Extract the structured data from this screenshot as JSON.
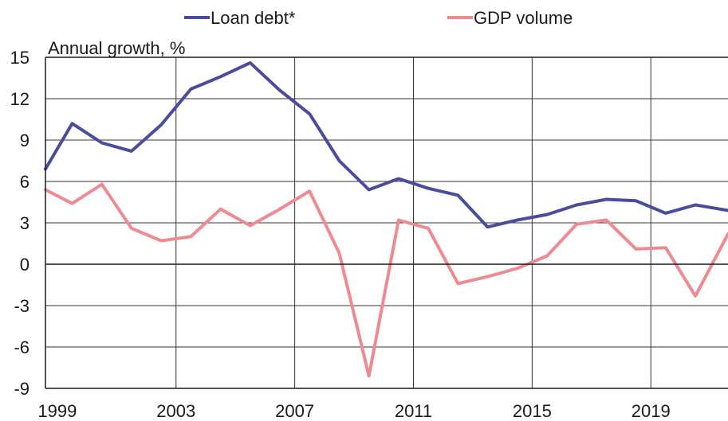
{
  "chart_data": {
    "type": "line",
    "ylabel": "Annual growth, %",
    "ylim": [
      -9,
      15
    ],
    "yticks": [
      15,
      12,
      9,
      6,
      3,
      0,
      -3,
      -6,
      -9
    ],
    "xlim": [
      1998.6,
      2021.6
    ],
    "xticks": [
      1999,
      2003,
      2007,
      2011,
      2015,
      2019
    ],
    "x_gridlines": [
      2003,
      2007,
      2011,
      2015,
      2019
    ],
    "y_gridlines": [
      12,
      9,
      6,
      3,
      -3,
      -6
    ],
    "zero_line": 0,
    "grid": true,
    "legend": {
      "position": "top"
    },
    "series": [
      {
        "name": "Loan debt*",
        "color": "#4a4d9e",
        "x": [
          1998.6,
          1999.5,
          2000.5,
          2001.5,
          2002.5,
          2003.5,
          2004.5,
          2005.5,
          2006.5,
          2007.5,
          2008.5,
          2009.5,
          2010.5,
          2011.5,
          2012.5,
          2013.5,
          2014.5,
          2015.5,
          2016.5,
          2017.5,
          2018.5,
          2019.5,
          2020.5,
          2021.6
        ],
        "values": [
          6.9,
          10.2,
          8.8,
          8.2,
          10.1,
          12.7,
          13.6,
          14.6,
          12.6,
          10.9,
          7.5,
          5.4,
          6.2,
          5.5,
          5.0,
          2.7,
          3.2,
          3.6,
          4.3,
          4.7,
          4.6,
          3.7,
          4.3,
          3.9
        ]
      },
      {
        "name": "GDP volume",
        "color": "#f08a92",
        "x": [
          1998.6,
          1999.5,
          2000.5,
          2001.5,
          2002.5,
          2003.5,
          2004.5,
          2005.5,
          2006.5,
          2007.5,
          2008.5,
          2009.5,
          2010.5,
          2011.5,
          2012.5,
          2013.5,
          2014.5,
          2015.5,
          2016.5,
          2017.5,
          2018.5,
          2019.5,
          2020.5,
          2021.6
        ],
        "values": [
          5.4,
          4.4,
          5.8,
          2.6,
          1.7,
          2.0,
          4.0,
          2.8,
          4.0,
          5.3,
          0.8,
          -8.1,
          3.2,
          2.6,
          -1.4,
          -0.9,
          -0.3,
          0.6,
          2.9,
          3.2,
          1.1,
          1.2,
          -2.3,
          2.2
        ]
      }
    ]
  }
}
